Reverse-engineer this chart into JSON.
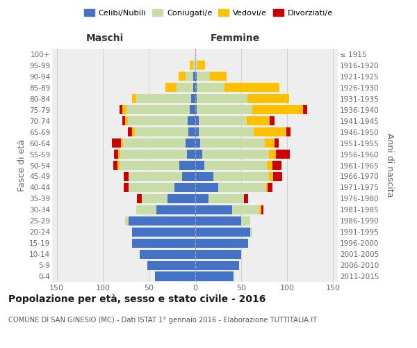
{
  "age_groups": [
    "0-4",
    "5-9",
    "10-14",
    "15-19",
    "20-24",
    "25-29",
    "30-34",
    "35-39",
    "40-44",
    "45-49",
    "50-54",
    "55-59",
    "60-64",
    "65-69",
    "70-74",
    "75-79",
    "80-84",
    "85-89",
    "90-94",
    "95-99",
    "100+"
  ],
  "birth_years": [
    "2011-2015",
    "2006-2010",
    "2001-2005",
    "1996-2000",
    "1991-1995",
    "1986-1990",
    "1981-1985",
    "1976-1980",
    "1971-1975",
    "1966-1970",
    "1961-1965",
    "1956-1960",
    "1951-1955",
    "1946-1950",
    "1941-1945",
    "1936-1940",
    "1931-1935",
    "1926-1930",
    "1921-1925",
    "1916-1920",
    "≤ 1915"
  ],
  "male": {
    "celibi": [
      43,
      52,
      60,
      68,
      68,
      72,
      42,
      30,
      22,
      14,
      17,
      9,
      10,
      7,
      8,
      6,
      4,
      2,
      2,
      0,
      0
    ],
    "coniugati": [
      0,
      0,
      0,
      0,
      0,
      4,
      22,
      28,
      50,
      58,
      65,
      72,
      68,
      58,
      65,
      68,
      60,
      18,
      8,
      2,
      0
    ],
    "vedovi": [
      0,
      0,
      0,
      0,
      0,
      0,
      0,
      0,
      0,
      0,
      2,
      2,
      2,
      3,
      3,
      5,
      4,
      12,
      8,
      4,
      0
    ],
    "divorziati": [
      0,
      0,
      0,
      0,
      0,
      0,
      0,
      5,
      5,
      5,
      5,
      5,
      10,
      5,
      3,
      3,
      0,
      0,
      0,
      0,
      0
    ]
  },
  "female": {
    "nubili": [
      42,
      48,
      50,
      58,
      60,
      50,
      40,
      15,
      25,
      20,
      10,
      8,
      6,
      4,
      4,
      2,
      2,
      2,
      2,
      0,
      0
    ],
    "coniugate": [
      0,
      0,
      0,
      0,
      2,
      10,
      30,
      38,
      52,
      60,
      68,
      72,
      70,
      60,
      52,
      60,
      55,
      30,
      14,
      3,
      0
    ],
    "vedove": [
      0,
      0,
      0,
      0,
      0,
      0,
      2,
      0,
      2,
      5,
      6,
      8,
      10,
      35,
      25,
      55,
      45,
      60,
      18,
      8,
      1
    ],
    "divorziate": [
      0,
      0,
      0,
      0,
      0,
      0,
      2,
      5,
      5,
      10,
      10,
      15,
      5,
      5,
      5,
      5,
      0,
      0,
      0,
      0,
      0
    ]
  },
  "colors": {
    "celibi": "#4472c4",
    "coniugati": "#c8dca8",
    "vedovi": "#ffc000",
    "divorziati": "#cc0000"
  },
  "xlim": 155,
  "title": "Popolazione per età, sesso e stato civile - 2016",
  "subtitle": "COMUNE DI SAN GINESIO (MC) - Dati ISTAT 1° gennaio 2016 - Elaborazione TUTTITALIA.IT",
  "ylabel_left": "Fasce di età",
  "ylabel_right": "Anni di nascita",
  "xlabel_left": "Maschi",
  "xlabel_right": "Femmine",
  "bg_color": "#eeeeee",
  "grid_color": "#d0d0d0",
  "bar_height": 0.82
}
